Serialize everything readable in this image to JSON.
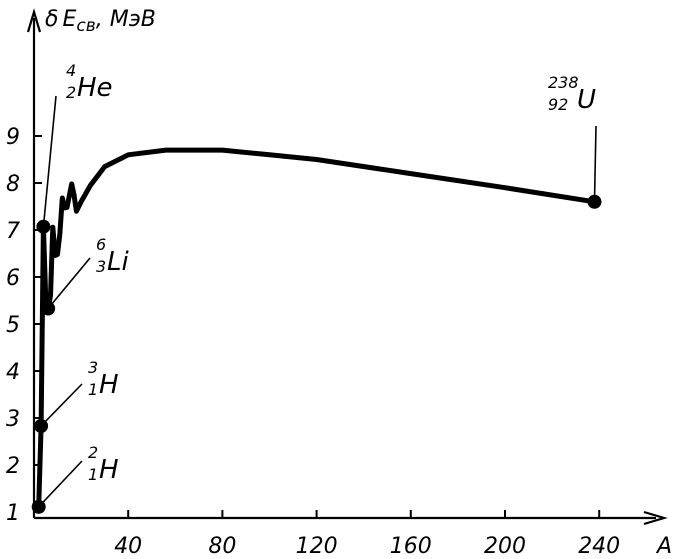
{
  "chart_data": {
    "type": "line",
    "title": "",
    "ylabel": "δE_св, МэВ",
    "xlabel": "A",
    "ylabel_parts": {
      "delta": "δ",
      "e": "E",
      "sub": "св",
      "rest": ", МэВ"
    },
    "xlim": [
      0,
      250
    ],
    "ylim": [
      0,
      9.5
    ],
    "x_ticks": [
      40,
      80,
      120,
      160,
      200,
      240
    ],
    "y_ticks": [
      1,
      2,
      3,
      4,
      5,
      6,
      7,
      8,
      9
    ],
    "grid": false,
    "series": [
      {
        "values": [
          {
            "x": 2,
            "y": 1.11
          },
          {
            "x": 3,
            "y": 2.83
          },
          {
            "x": 4,
            "y": 7.07
          },
          {
            "x": 5,
            "y": 5.5
          },
          {
            "x": 6,
            "y": 5.33
          },
          {
            "x": 7,
            "y": 5.6
          },
          {
            "x": 8,
            "y": 7.06
          },
          {
            "x": 9,
            "y": 6.46
          },
          {
            "x": 10,
            "y": 6.48
          },
          {
            "x": 11,
            "y": 6.93
          },
          {
            "x": 12,
            "y": 7.68
          },
          {
            "x": 13,
            "y": 7.47
          },
          {
            "x": 14,
            "y": 7.48
          },
          {
            "x": 16,
            "y": 7.98
          },
          {
            "x": 17,
            "y": 7.75
          },
          {
            "x": 18,
            "y": 7.4
          },
          {
            "x": 20,
            "y": 7.6
          },
          {
            "x": 24,
            "y": 7.95
          },
          {
            "x": 30,
            "y": 8.35
          },
          {
            "x": 40,
            "y": 8.6
          },
          {
            "x": 56,
            "y": 8.7
          },
          {
            "x": 80,
            "y": 8.7
          },
          {
            "x": 100,
            "y": 8.6
          },
          {
            "x": 120,
            "y": 8.5
          },
          {
            "x": 160,
            "y": 8.2
          },
          {
            "x": 200,
            "y": 7.9
          },
          {
            "x": 238,
            "y": 7.6
          }
        ]
      }
    ],
    "points": [
      {
        "id": "h2",
        "x": 2,
        "y": 1.11,
        "mass": "2",
        "charge": "1",
        "symbol": "H"
      },
      {
        "id": "h3",
        "x": 3,
        "y": 2.83,
        "mass": "3",
        "charge": "1",
        "symbol": "H"
      },
      {
        "id": "he4",
        "x": 4,
        "y": 7.07,
        "mass": "4",
        "charge": "2",
        "symbol": "He"
      },
      {
        "id": "li6",
        "x": 6,
        "y": 5.33,
        "mass": "6",
        "charge": "3",
        "symbol": "Li"
      },
      {
        "id": "u238",
        "x": 238,
        "y": 7.6,
        "mass": "238",
        "charge": "92",
        "symbol": "U"
      }
    ]
  }
}
